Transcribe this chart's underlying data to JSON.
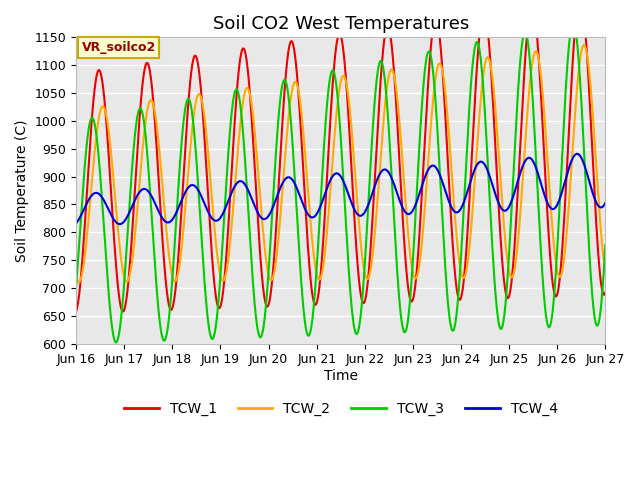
{
  "title": "Soil CO2 West Temperatures",
  "xlabel": "Time",
  "ylabel": "Soil Temperature (C)",
  "ylim": [
    600,
    1150
  ],
  "annotation_text": "VR_soilco2",
  "bg_color": "#e8e8e8",
  "line_colors": {
    "TCW_1": "#ee0000",
    "TCW_2": "#ffaa00",
    "TCW_3": "#00cc00",
    "TCW_4": "#0000dd"
  },
  "legend_labels": [
    "TCW_1",
    "TCW_2",
    "TCW_3",
    "TCW_4"
  ],
  "tick_days": [
    16,
    17,
    18,
    19,
    20,
    21,
    22,
    23,
    24,
    25,
    26,
    27
  ],
  "tcw1_base": 870,
  "tcw1_base_trend": 8,
  "tcw1_amp": 215,
  "tcw1_amp_trend": 5,
  "tcw1_phase": -1.4,
  "tcw2_base": 865,
  "tcw2_base_trend": 6,
  "tcw2_amp": 155,
  "tcw2_amp_trend": 5,
  "tcw2_phase": -1.9,
  "tcw3_base": 800,
  "tcw3_base_trend": 10,
  "tcw3_amp": 200,
  "tcw3_amp_trend": 7,
  "tcw3_phase": -0.5,
  "tcw4_base": 840,
  "tcw4_base_trend": 5,
  "tcw4_amp": 28,
  "tcw4_amp_trend": 2,
  "tcw4_phase": -1.0
}
